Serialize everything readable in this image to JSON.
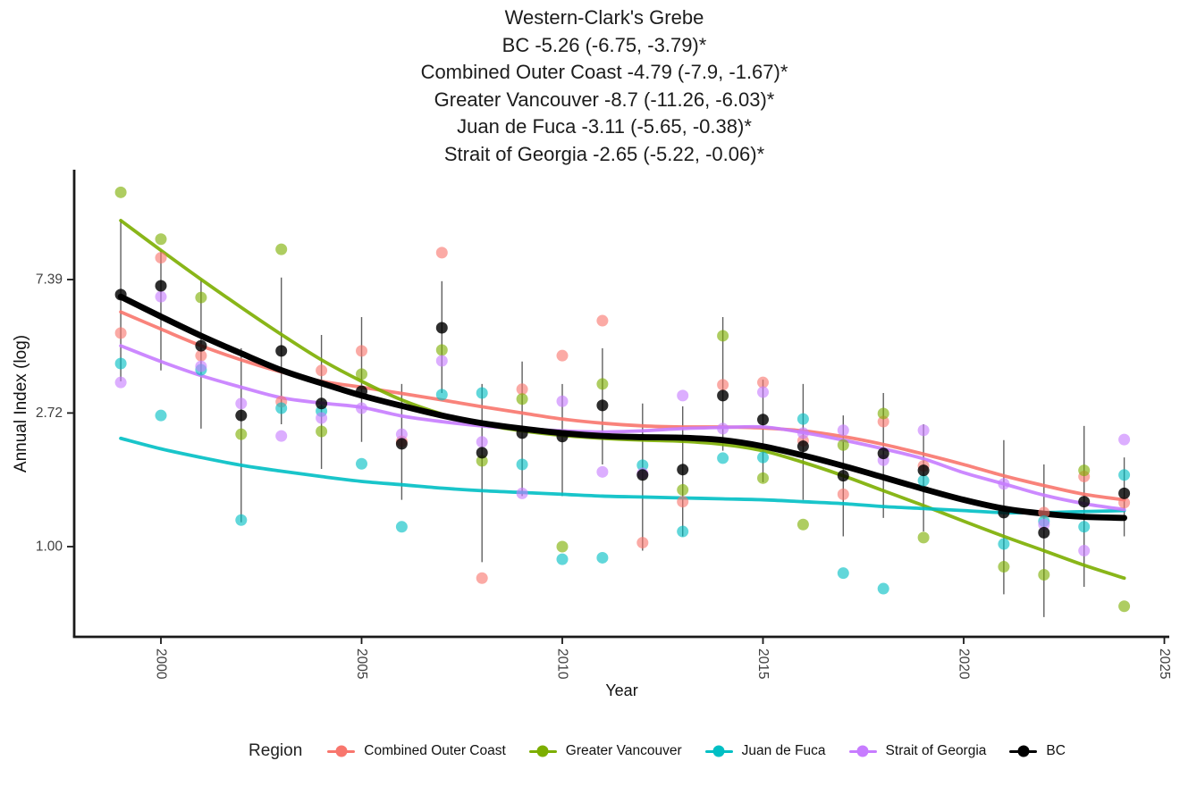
{
  "chart_data": {
    "type": "scatter",
    "subtype": "annual index points with smoothed trend lines and confidence-interval error bars",
    "title_lines": [
      "Western-Clark's Grebe",
      "BC -5.26 (-6.75, -3.79)*",
      "Combined Outer Coast -4.79 (-7.9, -1.67)*",
      "Greater Vancouver -8.7 (-11.26, -6.03)*",
      "Juan de Fuca -3.11 (-5.65, -0.38)*",
      "Strait of Georgia -2.65 (-5.22, -0.06)*"
    ],
    "xlabel": "Year",
    "ylabel": "Annual Index (log)",
    "legend_title": "Region",
    "x_ticks": [
      2000,
      2005,
      2010,
      2015,
      2020,
      2025
    ],
    "y_ticks": [
      {
        "value": 7.39,
        "label": "7.39"
      },
      {
        "value": 2.72,
        "label": "2.72"
      },
      {
        "value": 1.0,
        "label": "1.00"
      }
    ],
    "y_scale": "log",
    "x_range": [
      1998.7,
      2025.4
    ],
    "grid": false,
    "legend_position": "bottom",
    "error_bar_color": "#606060",
    "axis_color": "#1a1a1a",
    "tick_label_color": "#404040",
    "years": [
      1999,
      2000,
      2001,
      2002,
      2003,
      2004,
      2005,
      2006,
      2007,
      2008,
      2009,
      2010,
      2011,
      2012,
      2013,
      2014,
      2015,
      2016,
      2017,
      2018,
      2019,
      2020,
      2021,
      2022,
      2023,
      2024
    ],
    "series": [
      {
        "name": "Combined Outer Coast",
        "color": "#F8766D",
        "points": [
          4.95,
          8.7,
          4.18,
          null,
          2.96,
          3.74,
          4.33,
          2.2,
          9.04,
          0.79,
          3.25,
          4.18,
          5.43,
          1.03,
          1.4,
          3.36,
          3.42,
          2.21,
          1.48,
          2.55,
          1.83,
          null,
          null,
          1.29,
          1.69,
          1.39
        ],
        "trend": [
          5.8,
          5.1,
          4.5,
          4.05,
          3.7,
          3.45,
          3.3,
          3.15,
          3.0,
          2.85,
          2.72,
          2.6,
          2.52,
          2.47,
          2.45,
          2.45,
          2.43,
          2.38,
          2.28,
          2.15,
          2.0,
          1.85,
          1.7,
          1.58,
          1.48,
          1.42
        ]
      },
      {
        "name": "Greater Vancouver",
        "color": "#7CAE00",
        "points": [
          14.2,
          10.0,
          6.46,
          2.32,
          9.27,
          2.37,
          3.64,
          null,
          4.36,
          1.9,
          3.02,
          1.0,
          3.38,
          null,
          1.53,
          4.85,
          1.67,
          1.18,
          2.14,
          2.71,
          1.07,
          null,
          0.86,
          0.81,
          1.77,
          0.64
        ],
        "trend": [
          11.5,
          9.2,
          7.4,
          6.0,
          4.9,
          4.05,
          3.45,
          3.0,
          2.7,
          2.5,
          2.38,
          2.3,
          2.25,
          2.22,
          2.2,
          2.15,
          2.05,
          1.88,
          1.7,
          1.52,
          1.36,
          1.21,
          1.08,
          0.97,
          0.87,
          0.79
        ]
      },
      {
        "name": "Juan de Fuca",
        "color": "#00BFC4",
        "points": [
          3.94,
          2.67,
          3.76,
          1.22,
          2.82,
          2.76,
          1.86,
          1.16,
          3.12,
          3.16,
          1.85,
          0.91,
          0.92,
          1.84,
          1.12,
          1.94,
          1.95,
          2.6,
          0.82,
          0.73,
          1.64,
          null,
          1.02,
          1.21,
          1.16,
          1.71
        ],
        "trend": [
          2.25,
          2.08,
          1.95,
          1.84,
          1.76,
          1.69,
          1.63,
          1.59,
          1.55,
          1.52,
          1.5,
          1.48,
          1.46,
          1.45,
          1.44,
          1.43,
          1.42,
          1.4,
          1.38,
          1.35,
          1.33,
          1.31,
          1.29,
          1.29,
          1.3,
          1.31
        ]
      },
      {
        "name": "Strait of Georgia",
        "color": "#C77CFF",
        "points": [
          3.42,
          6.5,
          3.86,
          2.92,
          2.29,
          2.62,
          2.82,
          2.32,
          4.02,
          2.19,
          1.49,
          2.97,
          1.75,
          1.73,
          3.1,
          2.42,
          3.18,
          2.34,
          2.39,
          1.91,
          2.39,
          null,
          1.6,
          1.18,
          0.97,
          2.23
        ],
        "trend": [
          4.5,
          4.0,
          3.6,
          3.3,
          3.05,
          2.93,
          2.84,
          2.66,
          2.55,
          2.47,
          2.42,
          2.38,
          2.36,
          2.38,
          2.42,
          2.44,
          2.45,
          2.35,
          2.22,
          2.08,
          1.93,
          1.74,
          1.6,
          1.47,
          1.38,
          1.32
        ]
      },
      {
        "name": "BC",
        "color": "#000000",
        "points": [
          6.6,
          7.05,
          4.5,
          2.67,
          4.33,
          2.92,
          3.2,
          2.16,
          5.15,
          2.02,
          2.34,
          2.28,
          2.88,
          1.71,
          1.78,
          3.1,
          2.59,
          2.12,
          1.7,
          2.01,
          1.77,
          null,
          1.29,
          1.11,
          1.4,
          1.49
        ],
        "trend": [
          6.5,
          5.6,
          4.85,
          4.25,
          3.75,
          3.4,
          3.1,
          2.87,
          2.67,
          2.52,
          2.42,
          2.34,
          2.29,
          2.27,
          2.26,
          2.22,
          2.12,
          1.98,
          1.83,
          1.68,
          1.54,
          1.42,
          1.33,
          1.28,
          1.25,
          1.24
        ],
        "ci_high": [
          11.5,
          9.2,
          7.4,
          4.42,
          7.5,
          4.88,
          5.58,
          3.38,
          7.3,
          3.38,
          4.0,
          3.38,
          4.42,
          2.92,
          2.86,
          5.58,
          3.49,
          3.38,
          2.67,
          3.16,
          2.5,
          null,
          2.22,
          1.85,
          2.47,
          1.95
        ],
        "ci_low": [
          3.45,
          3.74,
          2.42,
          1.2,
          2.5,
          1.79,
          2.19,
          1.42,
          3.16,
          0.89,
          1.46,
          1.46,
          1.85,
          0.97,
          1.08,
          2.05,
          1.62,
          1.42,
          1.08,
          1.24,
          1.12,
          null,
          0.7,
          0.59,
          0.74,
          1.08
        ]
      }
    ]
  }
}
